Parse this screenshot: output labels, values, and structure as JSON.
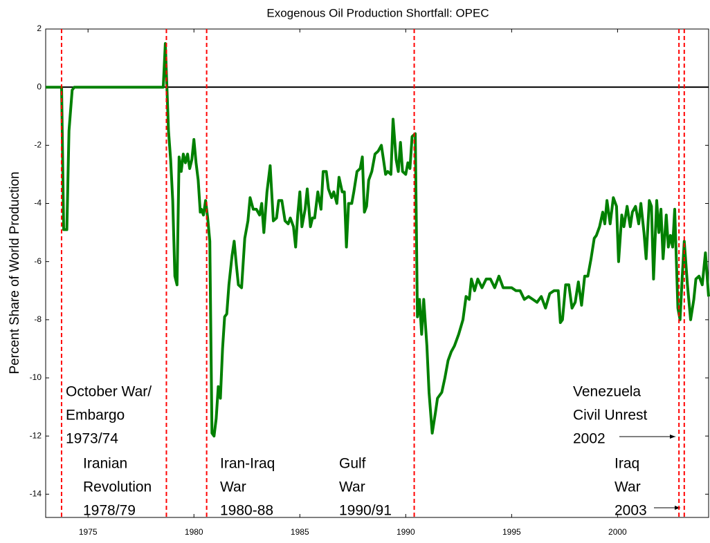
{
  "chart_data": {
    "type": "line",
    "title": "Exogenous Oil Production Shortfall: OPEC",
    "y_label": "Percent Share of World Production",
    "xlim": [
      1973,
      2004.3
    ],
    "ylim": [
      -14.8,
      2
    ],
    "xticks": [
      1975,
      1980,
      1985,
      1990,
      1995,
      2000
    ],
    "yticks": [
      -14,
      -12,
      -10,
      -8,
      -6,
      -4,
      -2,
      0,
      2
    ],
    "reference_line": 0,
    "event_color": "#ff0000",
    "event_lines": [
      1973.75,
      1978.7,
      1980.6,
      1990.4,
      2002.9,
      2003.15
    ],
    "annotations": [
      {
        "lines": [
          "October War/",
          "Embargo",
          "1973/74"
        ]
      },
      {
        "lines": [
          "Iranian",
          "Revolution",
          "1978/79"
        ]
      },
      {
        "lines": [
          "Iran-Iraq",
          "War",
          "1980-88"
        ]
      },
      {
        "lines": [
          "Gulf",
          "War",
          "1990/91"
        ]
      },
      {
        "lines": [
          "Venezuela",
          "Civil Unrest",
          "2002"
        ]
      },
      {
        "lines": [
          "Iraq",
          "War",
          "2003"
        ]
      }
    ],
    "color": "#008000",
    "x": [
      1973.0,
      1973.75,
      1973.85,
      1974.0,
      1974.1,
      1974.25,
      1974.35,
      1978.55,
      1978.65,
      1978.8,
      1978.9,
      1979.0,
      1979.1,
      1979.2,
      1979.3,
      1979.4,
      1979.5,
      1979.6,
      1979.7,
      1979.8,
      1979.9,
      1980.0,
      1980.1,
      1980.2,
      1980.3,
      1980.35,
      1980.45,
      1980.55,
      1980.65,
      1980.75,
      1980.85,
      1980.95,
      1981.05,
      1981.15,
      1981.25,
      1981.35,
      1981.45,
      1981.55,
      1981.65,
      1981.8,
      1981.9,
      1982.0,
      1982.1,
      1982.25,
      1982.4,
      1982.55,
      1982.65,
      1982.8,
      1982.95,
      1983.1,
      1983.2,
      1983.3,
      1983.45,
      1983.6,
      1983.75,
      1983.9,
      1984.0,
      1984.15,
      1984.3,
      1984.45,
      1984.55,
      1984.7,
      1984.8,
      1984.9,
      1985.0,
      1985.1,
      1985.25,
      1985.35,
      1985.5,
      1985.6,
      1985.7,
      1985.85,
      1986.0,
      1986.1,
      1986.25,
      1986.35,
      1986.5,
      1986.6,
      1986.75,
      1986.85,
      1987.0,
      1987.1,
      1987.2,
      1987.3,
      1987.45,
      1987.55,
      1987.7,
      1987.85,
      1987.95,
      1988.05,
      1988.15,
      1988.25,
      1988.4,
      1988.55,
      1988.7,
      1988.85,
      1988.95,
      1989.05,
      1989.15,
      1989.3,
      1989.4,
      1989.55,
      1989.65,
      1989.75,
      1989.85,
      1990.0,
      1990.1,
      1990.2,
      1990.3,
      1990.45,
      1990.55,
      1990.65,
      1990.75,
      1990.85,
      1991.0,
      1991.1,
      1991.25,
      1991.4,
      1991.5,
      1991.7,
      1991.85,
      1992.0,
      1992.15,
      1992.3,
      1992.5,
      1992.7,
      1992.85,
      1993.0,
      1993.1,
      1993.25,
      1993.4,
      1993.6,
      1993.8,
      1994.0,
      1994.2,
      1994.4,
      1994.6,
      1994.8,
      1995.0,
      1995.2,
      1995.4,
      1995.6,
      1995.8,
      1996.0,
      1996.2,
      1996.4,
      1996.6,
      1996.8,
      1997.0,
      1997.2,
      1997.3,
      1997.4,
      1997.55,
      1997.7,
      1997.85,
      1998.0,
      1998.15,
      1998.3,
      1998.45,
      1998.6,
      1998.75,
      1998.9,
      1999.0,
      1999.15,
      1999.3,
      1999.4,
      1999.5,
      1999.65,
      1999.8,
      1999.95,
      2000.05,
      2000.2,
      2000.3,
      2000.45,
      2000.6,
      2000.7,
      2000.85,
      2001.0,
      2001.1,
      2001.25,
      2001.35,
      2001.5,
      2001.6,
      2001.7,
      2001.85,
      2001.95,
      2002.05,
      2002.15,
      2002.3,
      2002.4,
      2002.5,
      2002.6,
      2002.7,
      2002.85,
      2002.95,
      2003.05,
      2003.15,
      2003.3,
      2003.45,
      2003.6,
      2003.7,
      2003.85,
      2004.0,
      2004.15,
      2004.3
    ],
    "values": [
      0,
      0,
      -4.9,
      -4.9,
      -1.5,
      -0.1,
      0,
      0,
      1.5,
      -1.5,
      -2.5,
      -3.9,
      -6.5,
      -6.8,
      -2.4,
      -2.9,
      -2.3,
      -2.6,
      -2.3,
      -2.8,
      -2.5,
      -1.8,
      -2.6,
      -3.2,
      -4.3,
      -4.2,
      -4.4,
      -3.9,
      -4.5,
      -5.3,
      -11.9,
      -12.0,
      -11.4,
      -10.3,
      -10.7,
      -9.0,
      -7.9,
      -7.8,
      -6.8,
      -5.8,
      -5.3,
      -6.1,
      -6.8,
      -6.9,
      -5.2,
      -4.6,
      -3.8,
      -4.2,
      -4.2,
      -4.4,
      -4.0,
      -5.0,
      -3.6,
      -2.7,
      -4.6,
      -4.5,
      -3.9,
      -3.9,
      -4.6,
      -4.7,
      -4.5,
      -4.8,
      -5.5,
      -4.4,
      -3.6,
      -4.8,
      -4.2,
      -3.5,
      -4.8,
      -4.5,
      -4.5,
      -3.6,
      -4.2,
      -2.9,
      -2.9,
      -3.5,
      -3.8,
      -3.6,
      -4.0,
      -3.1,
      -3.6,
      -3.6,
      -5.5,
      -4.0,
      -4.0,
      -3.6,
      -2.9,
      -2.8,
      -2.4,
      -4.3,
      -4.1,
      -3.2,
      -2.9,
      -2.3,
      -2.2,
      -2.0,
      -2.5,
      -3.0,
      -2.9,
      -3.0,
      -1.1,
      -2.5,
      -2.9,
      -1.9,
      -2.9,
      -3.0,
      -2.6,
      -2.8,
      -1.7,
      -1.6,
      -7.9,
      -7.3,
      -8.5,
      -7.3,
      -8.9,
      -10.5,
      -11.9,
      -11.2,
      -10.7,
      -10.5,
      -10.0,
      -9.4,
      -9.1,
      -8.9,
      -8.5,
      -8.0,
      -7.2,
      -7.3,
      -6.6,
      -7.0,
      -6.6,
      -6.9,
      -6.6,
      -6.6,
      -6.9,
      -6.5,
      -6.9,
      -6.9,
      -6.9,
      -7.0,
      -7.0,
      -7.3,
      -7.2,
      -7.3,
      -7.4,
      -7.2,
      -7.6,
      -7.1,
      -7.0,
      -7.0,
      -8.1,
      -8.0,
      -6.8,
      -6.8,
      -7.6,
      -7.4,
      -6.7,
      -7.5,
      -6.5,
      -6.5,
      -5.9,
      -5.2,
      -5.1,
      -4.8,
      -4.3,
      -4.7,
      -3.9,
      -4.7,
      -3.8,
      -4.1,
      -6.0,
      -4.4,
      -4.8,
      -4.1,
      -4.8,
      -4.3,
      -4.1,
      -4.7,
      -4.0,
      -5.0,
      -5.9,
      -3.9,
      -4.1,
      -6.6,
      -3.9,
      -5.0,
      -4.2,
      -5.9,
      -4.4,
      -5.5,
      -5.1,
      -5.5,
      -4.2,
      -7.6,
      -8.0,
      -6.6,
      -5.3,
      -6.8,
      -8.0,
      -7.3,
      -6.6,
      -6.5,
      -6.8,
      -5.7,
      -7.2
    ]
  }
}
